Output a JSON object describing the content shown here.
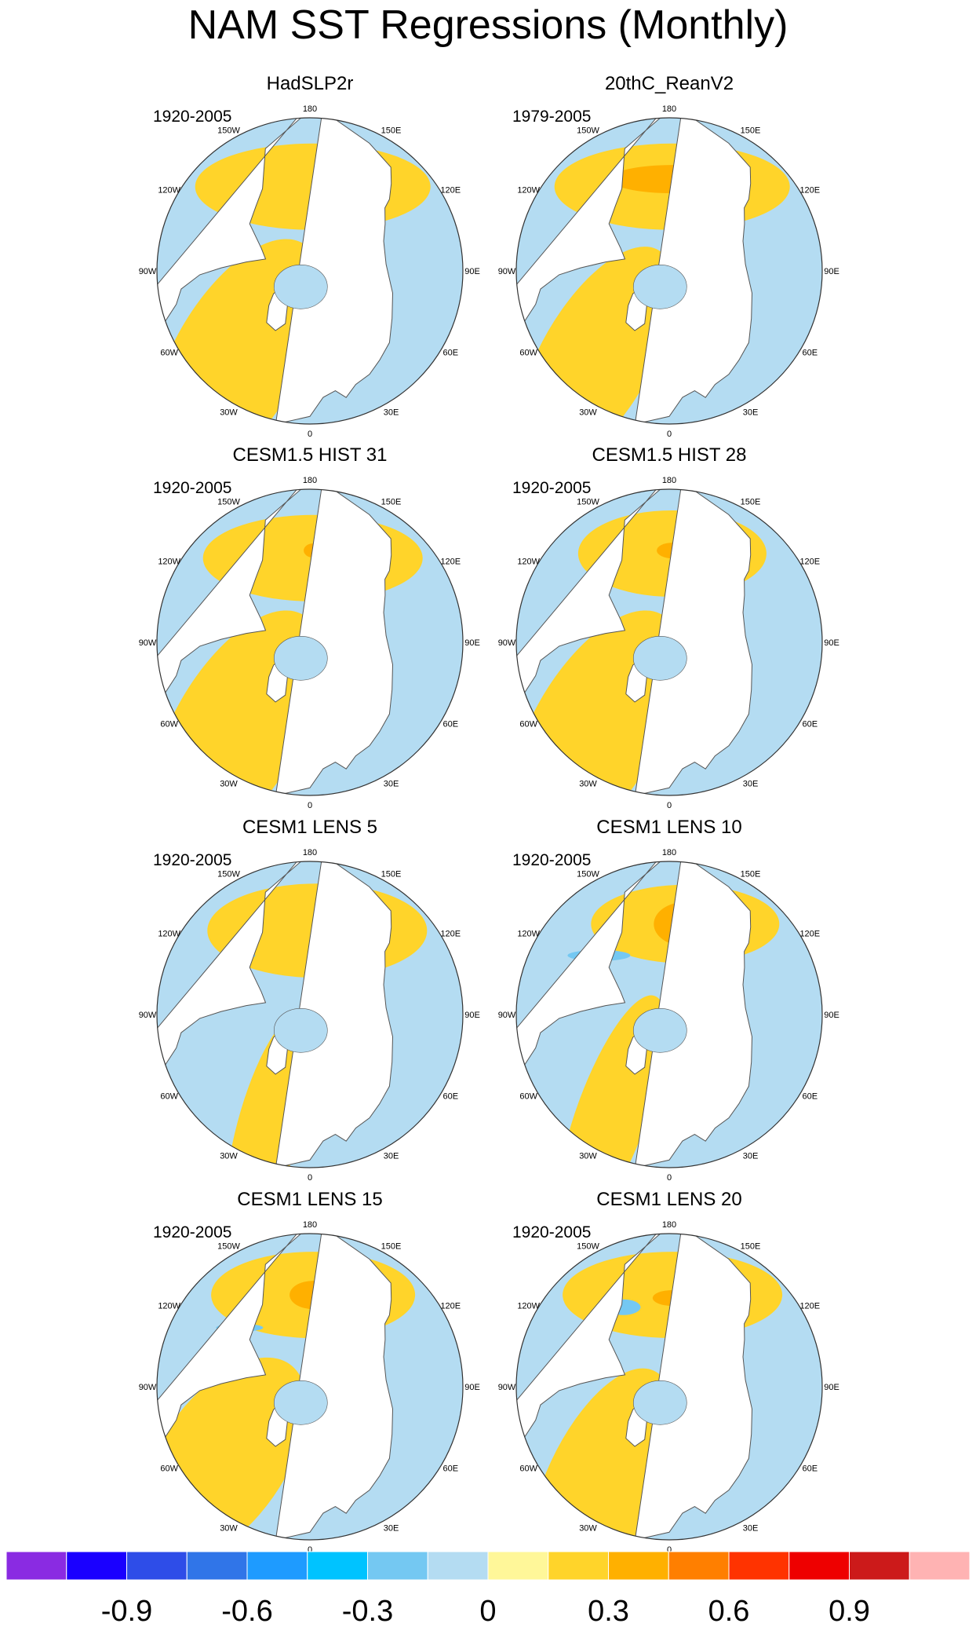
{
  "title": "NAM SST Regressions (Monthly)",
  "colors": {
    "zero_pos": "#fff799",
    "pos_1": "#ffd42a",
    "pos_2": "#ffb000",
    "zero_neg": "#b4dcf2",
    "neg_1": "#74c8f2",
    "land": "#ffffff",
    "outline": "#555555"
  },
  "longitude_labels": [
    "180",
    "150E",
    "120E",
    "90E",
    "60E",
    "30E",
    "0",
    "30W",
    "60W",
    "90W",
    "120W",
    "150W"
  ],
  "panels": [
    {
      "title": "HadSLP2r",
      "period": "1920-2005"
    },
    {
      "title": "20thC_ReanV2",
      "period": "1979-2005"
    },
    {
      "title": "CESM1.5 HIST 31",
      "period": "1920-2005"
    },
    {
      "title": "CESM1.5 HIST 28",
      "period": "1920-2005"
    },
    {
      "title": "CESM1 LENS 5",
      "period": "1920-2005"
    },
    {
      "title": "CESM1 LENS 10",
      "period": "1920-2005"
    },
    {
      "title": "CESM1 LENS 15",
      "period": "1920-2005"
    },
    {
      "title": "CESM1 LENS 20",
      "period": "1920-2005"
    }
  ],
  "colorbar": {
    "colors": [
      "#8a2be2",
      "#1a00ff",
      "#2e4de8",
      "#3075e8",
      "#1e9bff",
      "#00c3ff",
      "#74c8f2",
      "#b4dcf2",
      "#fff799",
      "#ffd42a",
      "#ffb000",
      "#ff7f00",
      "#ff3300",
      "#ee0000",
      "#cc1a1a",
      "#ffb3b3"
    ],
    "labels": [
      {
        "text": "-0.9",
        "boundary": 2
      },
      {
        "text": "-0.6",
        "boundary": 4
      },
      {
        "text": "-0.3",
        "boundary": 6
      },
      {
        "text": "0",
        "boundary": 8
      },
      {
        "text": "0.3",
        "boundary": 10
      },
      {
        "text": "0.6",
        "boundary": 12
      },
      {
        "text": "0.9",
        "boundary": 14
      }
    ]
  }
}
